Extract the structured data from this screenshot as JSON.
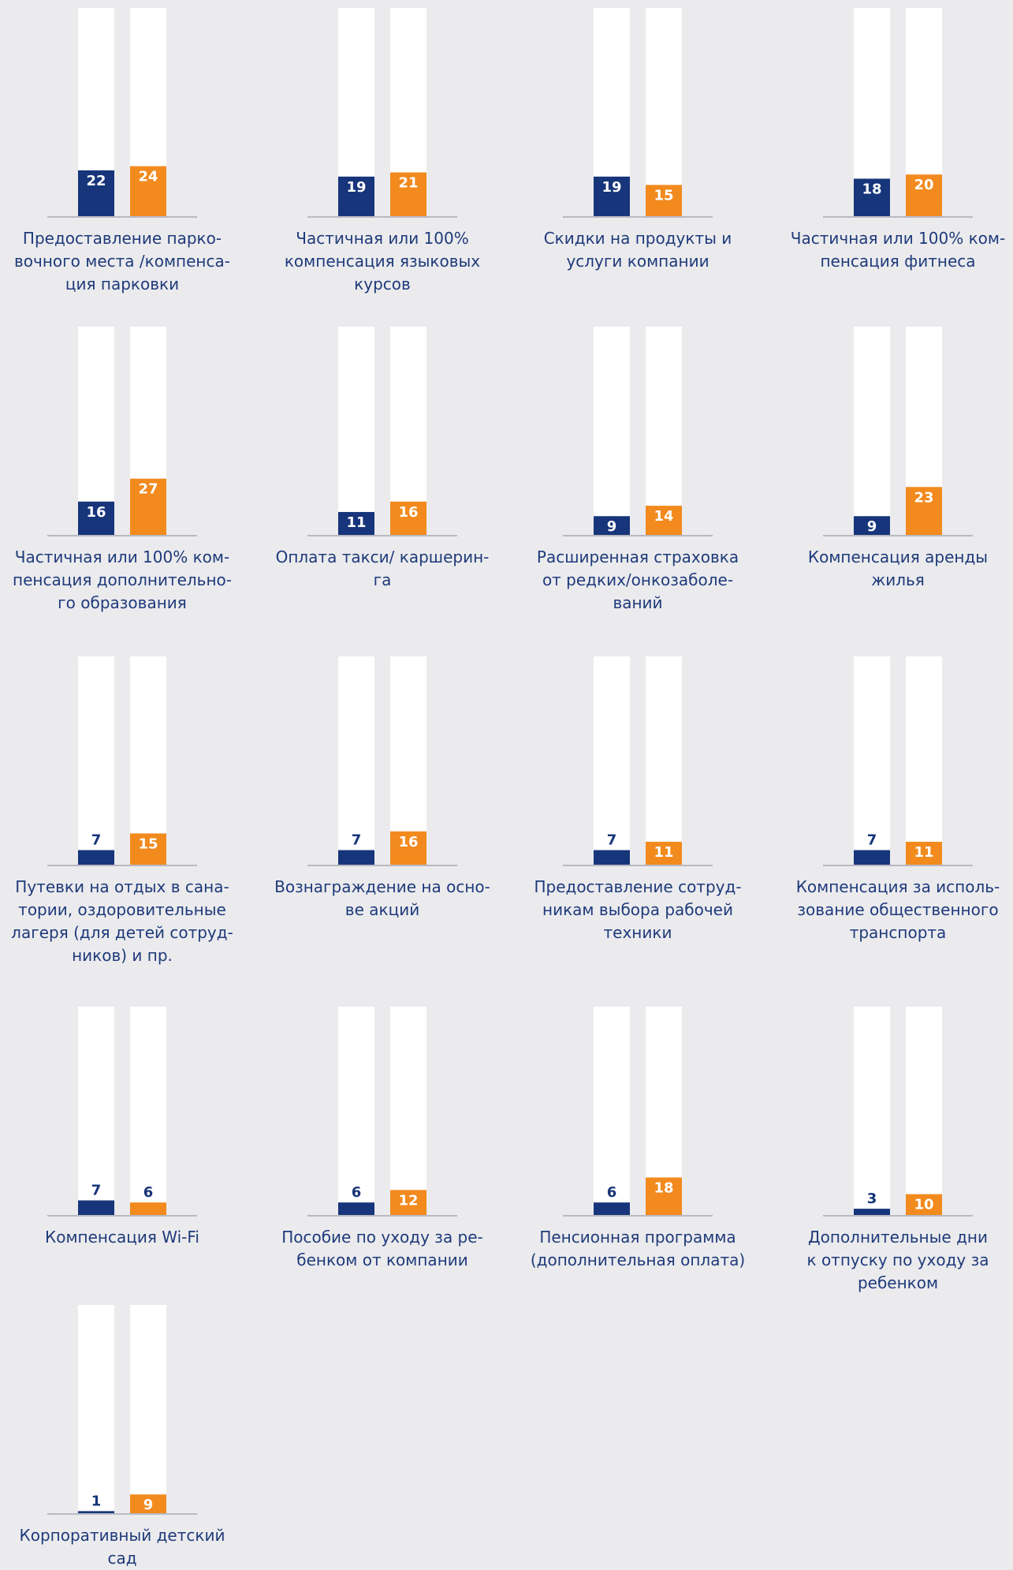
{
  "chart_data": [
    {
      "type": "bar",
      "categories": [
        "Предоставление парко-\nвочного места /компенса-\nция парковки"
      ],
      "series": [
        {
          "color": "#17357a",
          "values": [
            22
          ]
        },
        {
          "color": "#f28a1e",
          "values": [
            24
          ]
        }
      ],
      "ylim": [
        0,
        100
      ]
    },
    {
      "type": "bar",
      "categories": [
        "Частичная или 100%\nкомпенсация языковых\nкурсов"
      ],
      "series": [
        {
          "color": "#17357a",
          "values": [
            19
          ]
        },
        {
          "color": "#f28a1e",
          "values": [
            21
          ]
        }
      ],
      "ylim": [
        0,
        100
      ]
    },
    {
      "type": "bar",
      "categories": [
        "Скидки на продукты и\nуслуги компании"
      ],
      "series": [
        {
          "color": "#17357a",
          "values": [
            19
          ]
        },
        {
          "color": "#f28a1e",
          "values": [
            15
          ]
        }
      ],
      "ylim": [
        0,
        100
      ]
    },
    {
      "type": "bar",
      "categories": [
        "Частичная или 100% ком-\nпенсация фитнеса"
      ],
      "series": [
        {
          "color": "#17357a",
          "values": [
            18
          ]
        },
        {
          "color": "#f28a1e",
          "values": [
            20
          ]
        }
      ],
      "ylim": [
        0,
        100
      ]
    },
    {
      "type": "bar",
      "categories": [
        "Частичная или 100% ком-\nпенсация дополнительно-\nго образования"
      ],
      "series": [
        {
          "color": "#17357a",
          "values": [
            16
          ]
        },
        {
          "color": "#f28a1e",
          "values": [
            27
          ]
        }
      ],
      "ylim": [
        0,
        100
      ]
    },
    {
      "type": "bar",
      "categories": [
        "Оплата такси/ каршерин-\nга"
      ],
      "series": [
        {
          "color": "#17357a",
          "values": [
            11
          ]
        },
        {
          "color": "#f28a1e",
          "values": [
            16
          ]
        }
      ],
      "ylim": [
        0,
        100
      ]
    },
    {
      "type": "bar",
      "categories": [
        "Расширенная страховка\nот редких/онкозаболе-\nваний"
      ],
      "series": [
        {
          "color": "#17357a",
          "values": [
            9
          ]
        },
        {
          "color": "#f28a1e",
          "values": [
            14
          ]
        }
      ],
      "ylim": [
        0,
        100
      ]
    },
    {
      "type": "bar",
      "categories": [
        "Компенсация аренды\nжилья"
      ],
      "series": [
        {
          "color": "#17357a",
          "values": [
            9
          ]
        },
        {
          "color": "#f28a1e",
          "values": [
            23
          ]
        }
      ],
      "ylim": [
        0,
        100
      ]
    },
    {
      "type": "bar",
      "categories": [
        "Путевки на отдых в сана-\nтории, оздоровительные\nлагеря (для детей сотруд-\nников) и пр."
      ],
      "series": [
        {
          "color": "#17357a",
          "values": [
            7
          ]
        },
        {
          "color": "#f28a1e",
          "values": [
            15
          ]
        }
      ],
      "ylim": [
        0,
        100
      ]
    },
    {
      "type": "bar",
      "categories": [
        "Вознаграждение на осно-\nве акций"
      ],
      "series": [
        {
          "color": "#17357a",
          "values": [
            7
          ]
        },
        {
          "color": "#f28a1e",
          "values": [
            16
          ]
        }
      ],
      "ylim": [
        0,
        100
      ]
    },
    {
      "type": "bar",
      "categories": [
        "Предоставление сотруд-\nникам выбора рабочей\nтехники"
      ],
      "series": [
        {
          "color": "#17357a",
          "values": [
            7
          ]
        },
        {
          "color": "#f28a1e",
          "values": [
            11
          ]
        }
      ],
      "ylim": [
        0,
        100
      ]
    },
    {
      "type": "bar",
      "categories": [
        "Компенсация за исполь-\nзование общественного\nтранспорта"
      ],
      "series": [
        {
          "color": "#17357a",
          "values": [
            7
          ]
        },
        {
          "color": "#f28a1e",
          "values": [
            11
          ]
        }
      ],
      "ylim": [
        0,
        100
      ]
    },
    {
      "type": "bar",
      "categories": [
        "Компенсация Wi-Fi"
      ],
      "series": [
        {
          "color": "#17357a",
          "values": [
            7
          ]
        },
        {
          "color": "#f28a1e",
          "values": [
            6
          ]
        }
      ],
      "ylim": [
        0,
        100
      ]
    },
    {
      "type": "bar",
      "categories": [
        "Пособие по уходу за ре-\nбенком от компании"
      ],
      "series": [
        {
          "color": "#17357a",
          "values": [
            6
          ]
        },
        {
          "color": "#f28a1e",
          "values": [
            12
          ]
        }
      ],
      "ylim": [
        0,
        100
      ]
    },
    {
      "type": "bar",
      "categories": [
        "Пенсионная программа\n(дополнительная оплата)"
      ],
      "series": [
        {
          "color": "#17357a",
          "values": [
            6
          ]
        },
        {
          "color": "#f28a1e",
          "values": [
            18
          ]
        }
      ],
      "ylim": [
        0,
        100
      ]
    },
    {
      "type": "bar",
      "categories": [
        "Дополнительные дни\nк отпуску по уходу за\nребенком"
      ],
      "series": [
        {
          "color": "#17357a",
          "values": [
            3
          ]
        },
        {
          "color": "#f28a1e",
          "values": [
            10
          ]
        }
      ],
      "ylim": [
        0,
        100
      ]
    },
    {
      "type": "bar",
      "categories": [
        "Корпоративный детский\nсад"
      ],
      "series": [
        {
          "color": "#17357a",
          "values": [
            1
          ]
        },
        {
          "color": "#f28a1e",
          "values": [
            9
          ]
        }
      ],
      "ylim": [
        0,
        100
      ]
    }
  ]
}
